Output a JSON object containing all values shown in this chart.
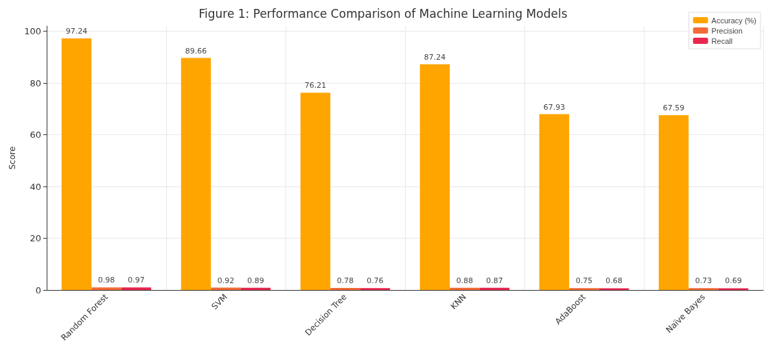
{
  "chart_data": {
    "type": "bar",
    "title": "Figure 1: Performance Comparison of Machine Learning Models",
    "ylabel": "Score",
    "categories": [
      "Random Forest",
      "SVM",
      "Decision Tree",
      "KNN",
      "AdaBoost",
      "Naïve Bayes"
    ],
    "series": [
      {
        "name": "Accuracy (%)",
        "color": "#ffa500",
        "values": [
          97.24,
          89.66,
          76.21,
          87.24,
          67.93,
          67.59
        ]
      },
      {
        "name": "Precision",
        "color": "#f26b38",
        "values": [
          0.98,
          0.92,
          0.78,
          0.88,
          0.75,
          0.73
        ]
      },
      {
        "name": "Recall",
        "color": "#e8274f",
        "values": [
          0.97,
          0.89,
          0.76,
          0.87,
          0.68,
          0.69
        ]
      }
    ],
    "ylim": [
      0,
      102
    ],
    "yticks": [
      0,
      20,
      40,
      60,
      80,
      100
    ],
    "grid": true,
    "legend": "top right",
    "data_labels": true
  }
}
